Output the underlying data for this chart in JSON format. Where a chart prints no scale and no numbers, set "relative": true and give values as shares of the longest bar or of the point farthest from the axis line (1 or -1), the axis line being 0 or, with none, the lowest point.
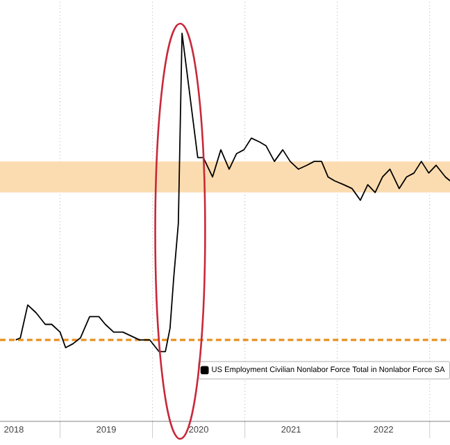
{
  "chart_data": {
    "type": "line",
    "relative": true,
    "x": [
      2018.52,
      2018.57,
      2018.65,
      2018.74,
      2018.84,
      2018.91,
      2019.0,
      2019.06,
      2019.14,
      2019.22,
      2019.32,
      2019.42,
      2019.49,
      2019.58,
      2019.68,
      2019.77,
      2019.86,
      2019.97,
      2020.07,
      2020.14,
      2020.19,
      2020.23,
      2020.28,
      2020.32,
      2020.49,
      2020.55,
      2020.65,
      2020.74,
      2020.83,
      2020.91,
      2020.99,
      2021.07,
      2021.16,
      2021.23,
      2021.32,
      2021.41,
      2021.49,
      2021.58,
      2021.67,
      2021.75,
      2021.83,
      2021.9,
      2021.97,
      2022.07,
      2022.16,
      2022.25,
      2022.33,
      2022.41,
      2022.49,
      2022.57,
      2022.67,
      2022.75,
      2022.83,
      2022.91,
      2022.99,
      2023.07,
      2023.17,
      2023.22
    ],
    "series": [
      {
        "name": "US Employment Civilian Nonlabor Force Total in Nonlabor Force SA",
        "color": "#000000",
        "values": [
          0.21,
          0.215,
          0.3,
          0.28,
          0.25,
          0.25,
          0.23,
          0.19,
          0.2,
          0.215,
          0.27,
          0.27,
          0.25,
          0.23,
          0.23,
          0.22,
          0.21,
          0.21,
          0.18,
          0.18,
          0.24,
          0.37,
          0.51,
          1,
          0.68,
          0.68,
          0.63,
          0.7,
          0.65,
          0.69,
          0.7,
          0.73,
          0.72,
          0.71,
          0.67,
          0.7,
          0.67,
          0.65,
          0.66,
          0.67,
          0.67,
          0.63,
          0.62,
          0.61,
          0.6,
          0.57,
          0.61,
          0.59,
          0.63,
          0.65,
          0.6,
          0.63,
          0.64,
          0.67,
          0.64,
          0.66,
          0.63,
          0.62
        ]
      }
    ],
    "xlim": [
      2018.35,
      2023.22
    ],
    "xticks": [
      {
        "value": 2018.5,
        "label": "2018"
      },
      {
        "value": 2019,
        "label": null
      },
      {
        "value": 2019.5,
        "label": "2019"
      },
      {
        "value": 2020,
        "label": null
      },
      {
        "value": 2020.5,
        "label": "2020"
      },
      {
        "value": 2021,
        "label": null
      },
      {
        "value": 2021.5,
        "label": "2021"
      },
      {
        "value": 2022,
        "label": null
      },
      {
        "value": 2022.5,
        "label": "2022"
      },
      {
        "value": 2023,
        "label": null
      }
    ],
    "grid": true,
    "legend": "bottom right",
    "ref_lines": [
      {
        "axis": "y",
        "value": 0.21,
        "color": "#e8901e",
        "line_style": "dashed"
      }
    ],
    "bands": [
      {
        "axis": "y",
        "from": 0.59,
        "to": 0.67,
        "color": "#fbdcb0"
      }
    ]
  }
}
